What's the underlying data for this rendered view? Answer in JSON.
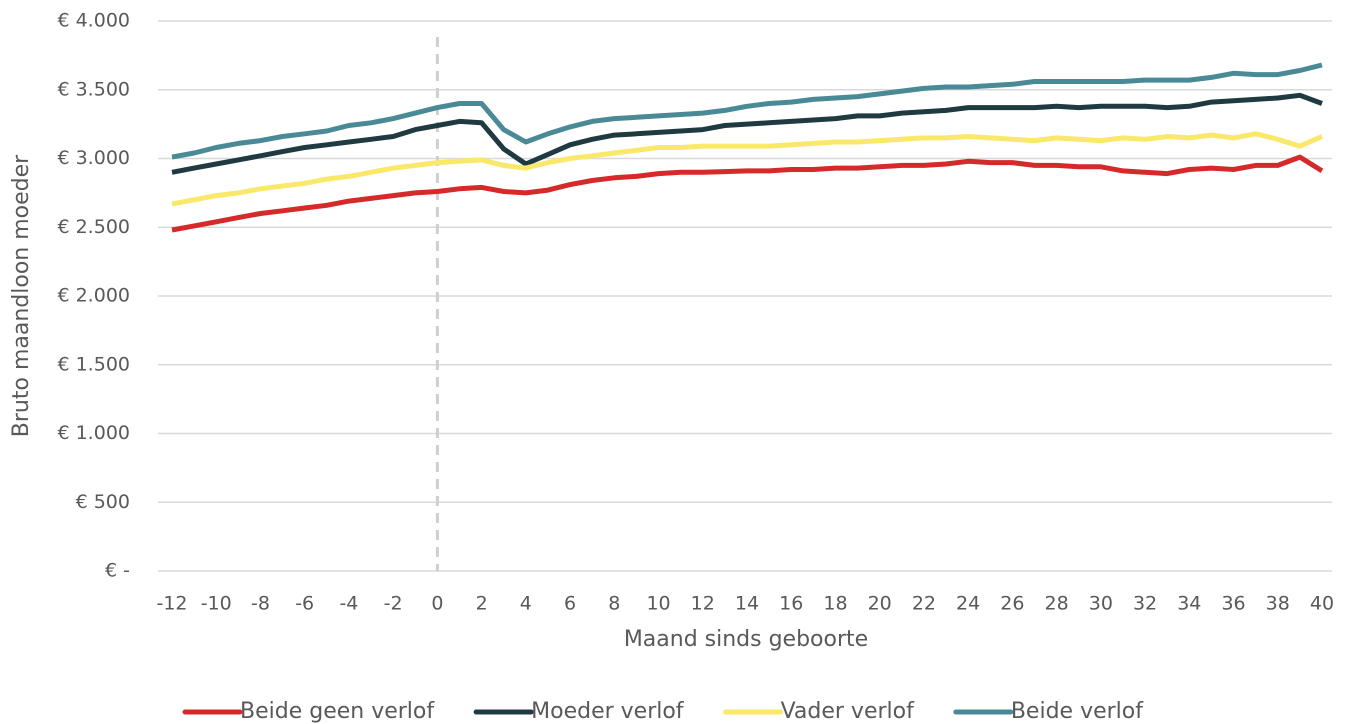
{
  "chart_data": {
    "type": "line",
    "y_label": "Bruto maandloon moeder",
    "x_label": "Maand sinds geboorte",
    "x": [
      -12,
      -11,
      -10,
      -9,
      -8,
      -7,
      -6,
      -5,
      -4,
      -3,
      -2,
      -1,
      0,
      1,
      2,
      3,
      4,
      5,
      6,
      7,
      8,
      9,
      10,
      11,
      12,
      13,
      14,
      15,
      16,
      17,
      18,
      19,
      20,
      21,
      22,
      23,
      24,
      25,
      26,
      27,
      28,
      29,
      30,
      31,
      32,
      33,
      34,
      35,
      36,
      37,
      38,
      39,
      40
    ],
    "series": [
      {
        "name": "Beide geen verlof",
        "color": "#d42a2a",
        "values": [
          2480,
          2510,
          2540,
          2570,
          2600,
          2620,
          2640,
          2660,
          2690,
          2710,
          2730,
          2750,
          2760,
          2780,
          2790,
          2760,
          2750,
          2770,
          2810,
          2840,
          2860,
          2870,
          2890,
          2900,
          2900,
          2905,
          2910,
          2910,
          2920,
          2920,
          2930,
          2930,
          2940,
          2950,
          2950,
          2960,
          2980,
          2970,
          2970,
          2950,
          2950,
          2940,
          2940,
          2910,
          2900,
          2890,
          2920,
          2930,
          2920,
          2950,
          2950,
          3010,
          2910
        ]
      },
      {
        "name": "Moeder verlof",
        "color": "#1f3a40",
        "values": [
          2900,
          2930,
          2960,
          2990,
          3020,
          3050,
          3080,
          3100,
          3120,
          3140,
          3160,
          3210,
          3240,
          3270,
          3260,
          3070,
          2960,
          3030,
          3100,
          3140,
          3170,
          3180,
          3190,
          3200,
          3210,
          3240,
          3250,
          3260,
          3270,
          3280,
          3290,
          3310,
          3310,
          3330,
          3340,
          3350,
          3370,
          3370,
          3370,
          3370,
          3380,
          3370,
          3380,
          3380,
          3380,
          3370,
          3380,
          3410,
          3420,
          3430,
          3440,
          3460,
          3400
        ]
      },
      {
        "name": "Vader verlof",
        "color": "#f9e86a",
        "values": [
          2670,
          2700,
          2730,
          2750,
          2780,
          2800,
          2820,
          2850,
          2870,
          2900,
          2930,
          2950,
          2970,
          2980,
          2990,
          2950,
          2930,
          2970,
          3000,
          3020,
          3040,
          3060,
          3080,
          3080,
          3090,
          3090,
          3090,
          3090,
          3100,
          3110,
          3120,
          3120,
          3130,
          3140,
          3150,
          3150,
          3160,
          3150,
          3140,
          3130,
          3150,
          3140,
          3130,
          3150,
          3140,
          3160,
          3150,
          3170,
          3150,
          3180,
          3140,
          3090,
          3160
        ]
      },
      {
        "name": "Beide verlof",
        "color": "#4a8a96",
        "values": [
          3010,
          3040,
          3080,
          3110,
          3130,
          3160,
          3180,
          3200,
          3240,
          3260,
          3290,
          3330,
          3370,
          3400,
          3400,
          3210,
          3120,
          3180,
          3230,
          3270,
          3290,
          3300,
          3310,
          3320,
          3330,
          3350,
          3380,
          3400,
          3410,
          3430,
          3440,
          3450,
          3470,
          3490,
          3510,
          3520,
          3520,
          3530,
          3540,
          3560,
          3560,
          3560,
          3560,
          3560,
          3570,
          3570,
          3570,
          3590,
          3620,
          3610,
          3610,
          3640,
          3680
        ]
      }
    ],
    "xlim": [
      -12,
      40
    ],
    "xticks": [
      -12,
      -10,
      -8,
      -6,
      -4,
      -2,
      0,
      2,
      4,
      6,
      8,
      10,
      12,
      14,
      16,
      18,
      20,
      22,
      24,
      26,
      28,
      30,
      32,
      34,
      36,
      38,
      40
    ],
    "ylim": [
      0,
      4000
    ],
    "yticks": [
      {
        "value": 0,
        "label": "€ -"
      },
      {
        "value": 500,
        "label": "€ 500"
      },
      {
        "value": 1000,
        "label": "€ 1.000"
      },
      {
        "value": 1500,
        "label": "€ 1.500"
      },
      {
        "value": 2000,
        "label": "€ 2.000"
      },
      {
        "value": 2500,
        "label": "€ 2.500"
      },
      {
        "value": 3000,
        "label": "€ 3.000"
      },
      {
        "value": 3500,
        "label": "€ 3.500"
      },
      {
        "value": 4000,
        "label": "€ 4.000"
      }
    ],
    "grid": true,
    "reference_line_x": 0,
    "legend": "bottom"
  }
}
